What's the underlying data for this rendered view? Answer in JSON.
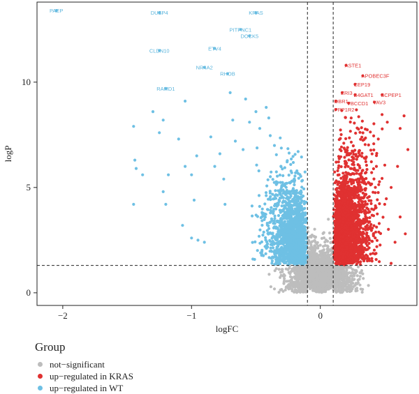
{
  "chart_data": {
    "type": "scatter",
    "title": "",
    "xlabel": "logFC",
    "ylabel": "logP",
    "xlim": [
      -2.2,
      0.75
    ],
    "ylim": [
      -0.6,
      13.8
    ],
    "x_ticks": [
      -2,
      -1,
      0
    ],
    "y_ticks": [
      0,
      5,
      10
    ],
    "grid": false,
    "thresholds": {
      "logFC": [
        -0.1,
        0.1
      ],
      "logP": 1.3
    },
    "legend": {
      "title": "Group",
      "position": "bottom-left",
      "entries": [
        {
          "label": "not−significant",
          "color": "#bdbdbd"
        },
        {
          "label": "up−regulated in KRAS",
          "color": "#e03131"
        },
        {
          "label": "up−regulated in WT",
          "color": "#6ec0e4"
        }
      ]
    },
    "labeled_genes": [
      {
        "name": "PAEP",
        "x": -2.05,
        "y": 13.4,
        "group": "WT"
      },
      {
        "name": "DUSP4",
        "x": -1.25,
        "y": 13.3,
        "group": "WT"
      },
      {
        "name": "KRAS",
        "x": -0.5,
        "y": 13.3,
        "group": "WT"
      },
      {
        "name": "PITPNC1",
        "x": -0.62,
        "y": 12.5,
        "group": "WT"
      },
      {
        "name": "DOCK5",
        "x": -0.55,
        "y": 12.2,
        "group": "WT"
      },
      {
        "name": "CLDN10",
        "x": -1.25,
        "y": 11.5,
        "group": "WT"
      },
      {
        "name": "ETV4",
        "x": -0.82,
        "y": 11.6,
        "group": "WT"
      },
      {
        "name": "NR4A2",
        "x": -0.9,
        "y": 10.7,
        "group": "WT"
      },
      {
        "name": "RHOB",
        "x": -0.72,
        "y": 10.4,
        "group": "WT"
      },
      {
        "name": "RAMD1",
        "x": -1.2,
        "y": 9.7,
        "group": "WT"
      },
      {
        "name": "ASTE1",
        "x": 0.2,
        "y": 10.8,
        "group": "KRAS"
      },
      {
        "name": "APOBEC3F",
        "x": 0.33,
        "y": 10.3,
        "group": "KRAS"
      },
      {
        "name": "CEP19",
        "x": 0.27,
        "y": 9.9,
        "group": "KRAS"
      },
      {
        "name": "ERI3",
        "x": 0.17,
        "y": 9.5,
        "group": "KRAS"
      },
      {
        "name": "B4GAT1",
        "x": 0.27,
        "y": 9.4,
        "group": "KRAS"
      },
      {
        "name": "SCPEP1",
        "x": 0.48,
        "y": 9.4,
        "group": "KRAS"
      },
      {
        "name": "DBR1",
        "x": 0.12,
        "y": 9.1,
        "group": "KRAS"
      },
      {
        "name": "TBCCD1",
        "x": 0.22,
        "y": 9.0,
        "group": "KRAS"
      },
      {
        "name": "VAV3",
        "x": 0.42,
        "y": 9.05,
        "group": "KRAS"
      },
      {
        "name": "PPP1R2",
        "x": 0.12,
        "y": 8.7,
        "group": "KRAS"
      }
    ],
    "outlier_points_WT": [
      [
        -1.45,
        7.9
      ],
      [
        -1.44,
        6.3
      ],
      [
        -1.43,
        5.9
      ],
      [
        -1.45,
        4.2
      ],
      [
        -1.38,
        5.6
      ],
      [
        -1.3,
        8.6
      ],
      [
        -1.25,
        7.6
      ],
      [
        -1.22,
        8.2
      ],
      [
        -1.22,
        4.8
      ],
      [
        -1.2,
        4.2
      ],
      [
        -1.18,
        5.6
      ],
      [
        -1.05,
        9.1
      ],
      [
        -1.1,
        7.3
      ],
      [
        -1.05,
        6.0
      ],
      [
        -1.0,
        5.6
      ],
      [
        -0.98,
        4.4
      ],
      [
        -0.96,
        6.5
      ],
      [
        -1.07,
        3.2
      ],
      [
        -1.0,
        2.6
      ],
      [
        -0.95,
        2.5
      ],
      [
        -0.9,
        2.4
      ],
      [
        -0.85,
        7.4
      ],
      [
        -0.82,
        6.0
      ],
      [
        -0.78,
        6.6
      ],
      [
        -0.75,
        5.4
      ],
      [
        -0.74,
        4.2
      ],
      [
        -0.7,
        9.5
      ],
      [
        -0.68,
        8.2
      ],
      [
        -0.66,
        7.2
      ],
      [
        -0.6,
        6.8
      ],
      [
        -0.58,
        9.2
      ],
      [
        -0.55,
        8.1
      ],
      [
        -0.5,
        8.6
      ],
      [
        -0.47,
        7.8
      ],
      [
        -0.42,
        8.8
      ],
      [
        -0.4,
        8.3
      ]
    ],
    "outlier_points_KRAS": [
      [
        0.62,
        7.8
      ],
      [
        0.65,
        8.4
      ],
      [
        0.68,
        6.8
      ],
      [
        0.6,
        6.0
      ],
      [
        0.55,
        5.0
      ],
      [
        0.5,
        4.2
      ],
      [
        0.62,
        3.6
      ],
      [
        0.66,
        2.8
      ],
      [
        0.58,
        2.4
      ],
      [
        0.55,
        1.4
      ],
      [
        0.45,
        7.3
      ],
      [
        0.52,
        8.1
      ]
    ],
    "bulk_distribution": {
      "not_significant": {
        "x_range": [
          -0.2,
          0.2
        ],
        "y_range": [
          0,
          3.5
        ],
        "n_points": 1900
      },
      "up_in_WT": {
        "x_range": [
          -0.65,
          -0.1
        ],
        "y_range": [
          1.3,
          8.2
        ],
        "n_points": 1600
      },
      "up_in_KRAS": {
        "x_range": [
          0.1,
          0.52
        ],
        "y_range": [
          1.3,
          8.6
        ],
        "n_points": 2400
      }
    }
  }
}
